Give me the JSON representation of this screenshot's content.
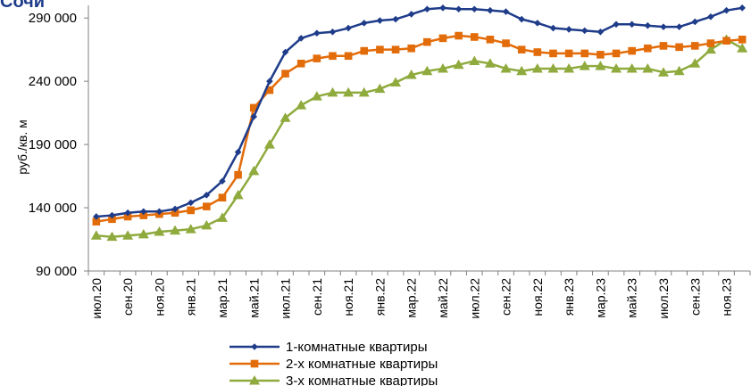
{
  "header": {
    "partial_title": "Сочи"
  },
  "chart_data": {
    "type": "line",
    "ylabel": "руб./кв. м",
    "xlabel": "",
    "ylim": [
      90000,
      300000
    ],
    "yticks": [
      "290 000",
      "240 000",
      "190 000",
      "140 000",
      "90 000"
    ],
    "ytick_values": [
      290000,
      240000,
      190000,
      140000,
      90000
    ],
    "grid": false,
    "legend_position": "bottom",
    "x": [
      "июл.20",
      "авг.20",
      "сен.20",
      "окт.20",
      "ноя.20",
      "дек.20",
      "янв.21",
      "фев.21",
      "мар.21",
      "апр.21",
      "май.21",
      "июн.21",
      "июл.21",
      "авг.21",
      "сен.21",
      "окт.21",
      "ноя.21",
      "дек.21",
      "янв.22",
      "фев.22",
      "мар.22",
      "апр.22",
      "май.22",
      "июн.22",
      "июл.22",
      "авг.22",
      "сен.22",
      "окт.22",
      "ноя.22",
      "дек.22",
      "янв.23",
      "фев.23",
      "мар.23",
      "апр.23",
      "май.23",
      "июн.23",
      "июл.23",
      "авг.23",
      "сен.23",
      "окт.23",
      "ноя.23",
      "дек.23"
    ],
    "x_labels_shown": [
      "июл.20",
      "сен.20",
      "ноя.20",
      "янв.21",
      "мар.21",
      "май.21",
      "июл.21",
      "сен.21",
      "ноя.21",
      "янв.22",
      "мар.22",
      "май.22",
      "июл.22",
      "сен.22",
      "ноя.22",
      "янв.23",
      "мар.23",
      "май.23",
      "июл.23",
      "сен.23",
      "ноя.23"
    ],
    "series": [
      {
        "name": "1-комнатные квартиры",
        "color": "#1f3c8a",
        "marker": "diamond",
        "values": [
          133000,
          134000,
          136000,
          137000,
          137000,
          139000,
          144000,
          150000,
          161000,
          184000,
          212000,
          240000,
          263000,
          274000,
          278000,
          279000,
          282000,
          286000,
          288000,
          289000,
          293000,
          297000,
          298000,
          297000,
          297000,
          296000,
          295000,
          289000,
          286000,
          282000,
          281000,
          280000,
          279000,
          285000,
          285000,
          284000,
          283000,
          283000,
          287000,
          291000,
          296000,
          298000
        ]
      },
      {
        "name": "2-х комнатные квартиры",
        "color": "#e36c0a",
        "marker": "square",
        "values": [
          129000,
          131000,
          133000,
          134000,
          135000,
          136000,
          138000,
          141000,
          148000,
          166000,
          219000,
          233000,
          246000,
          254000,
          258000,
          260000,
          260000,
          264000,
          265000,
          265000,
          266000,
          271000,
          274000,
          276000,
          275000,
          273000,
          270000,
          265000,
          263000,
          262000,
          262000,
          262000,
          261000,
          262000,
          264000,
          266000,
          268000,
          267000,
          268000,
          270000,
          272000,
          273000
        ]
      },
      {
        "name": "3-х комнатные квартиры",
        "color": "#8faa3d",
        "marker": "triangle",
        "values": [
          118000,
          117000,
          118000,
          119000,
          121000,
          122000,
          123000,
          126000,
          132000,
          150000,
          169000,
          190000,
          211000,
          221000,
          228000,
          231000,
          231000,
          231000,
          234000,
          239000,
          245000,
          248000,
          250000,
          253000,
          256000,
          254000,
          250000,
          248000,
          250000,
          250000,
          250000,
          252000,
          252000,
          250000,
          250000,
          250000,
          247000,
          248000,
          254000,
          265000,
          273000,
          266000
        ]
      }
    ]
  }
}
